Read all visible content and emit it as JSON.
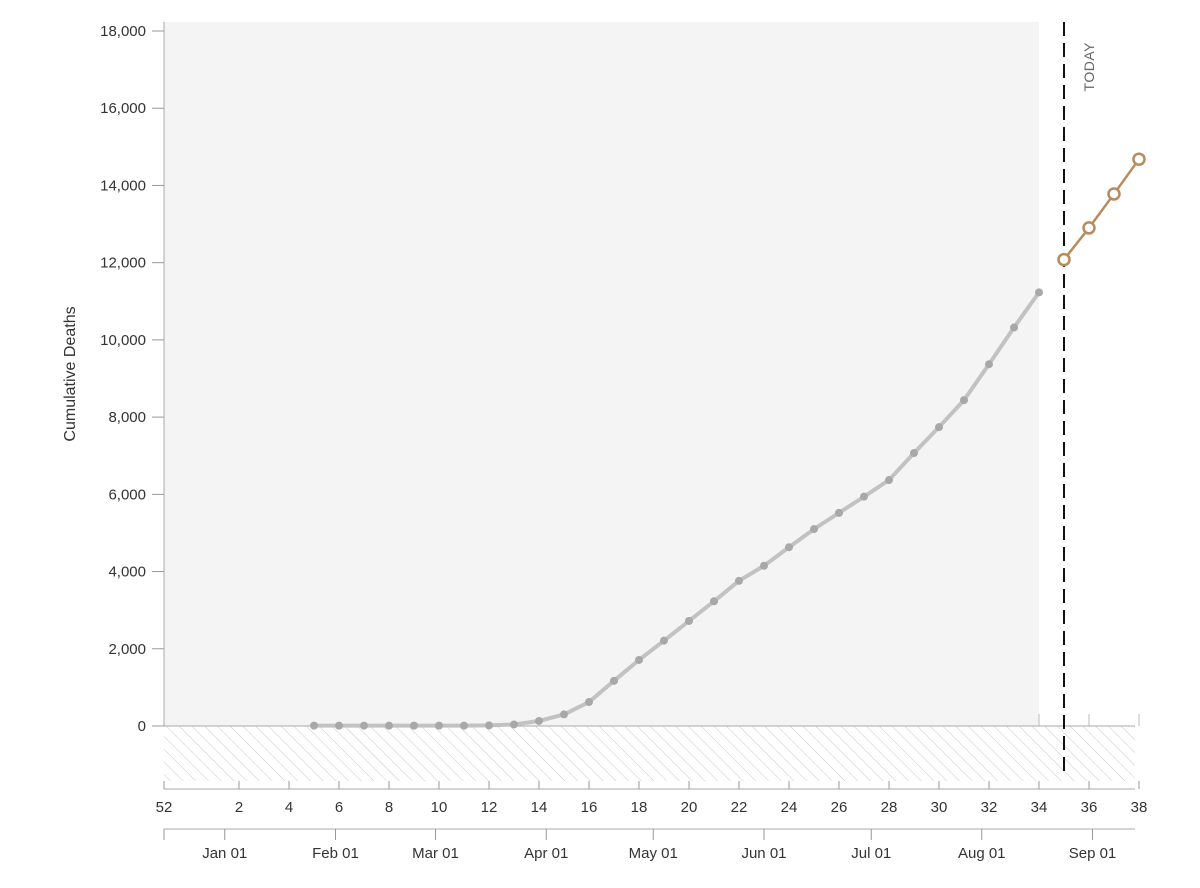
{
  "chart_data": {
    "type": "line",
    "title": "",
    "ylabel": "Cumulative Deaths",
    "xlabel": "",
    "ylim": [
      0,
      18000
    ],
    "yticks": [
      0,
      2000,
      4000,
      6000,
      8000,
      10000,
      12000,
      14000,
      16000,
      18000
    ],
    "ytick_labels": [
      "0",
      "2,000",
      "4,000",
      "6,000",
      "8,000",
      "10,000",
      "12,000",
      "14,000",
      "16,000",
      "18,000"
    ],
    "week_axis": {
      "range": [
        52,
        38
      ],
      "ticks": [
        52,
        2,
        4,
        6,
        8,
        10,
        12,
        14,
        16,
        18,
        20,
        22,
        24,
        26,
        28,
        30,
        32,
        34,
        36,
        38
      ],
      "labels": [
        "52",
        "2",
        "4",
        "6",
        "8",
        "10",
        "12",
        "14",
        "16",
        "18",
        "20",
        "22",
        "24",
        "26",
        "28",
        "30",
        "32",
        "34",
        "36",
        "38"
      ]
    },
    "month_axis": {
      "labels": [
        "Jan 01",
        "Feb 01",
        "Mar 01",
        "Apr 01",
        "May 01",
        "Jun 01",
        "Jul 01",
        "Aug 01",
        "Sep 01"
      ],
      "weeks": [
        1.43,
        5.86,
        9.86,
        14.29,
        18.57,
        23.0,
        27.29,
        31.71,
        36.14
      ]
    },
    "today_week": 35,
    "today_label": "TODAY",
    "series": [
      {
        "role": "observed",
        "color": "#c2c2c2",
        "marker_color": "#a8a8a8",
        "x": [
          5,
          6,
          7,
          8,
          9,
          10,
          11,
          12,
          13,
          14,
          15,
          16,
          17,
          18,
          19,
          20,
          21,
          22,
          23,
          24,
          25,
          26,
          27,
          28,
          29,
          30,
          31,
          32,
          33,
          34
        ],
        "y": [
          10,
          10,
          10,
          10,
          10,
          10,
          10,
          15,
          40,
          130,
          300,
          620,
          1170,
          1710,
          2210,
          2720,
          3230,
          3760,
          4150,
          4630,
          5100,
          5520,
          5940,
          6370,
          7070,
          7740,
          8440,
          9370,
          10320,
          11230
        ]
      },
      {
        "role": "forecast",
        "color": "#b98b5c",
        "x": [
          35,
          36,
          37,
          38
        ],
        "y": [
          12080,
          12900,
          13780,
          14680
        ]
      }
    ],
    "background": {
      "observed_region_color": "#f4f4f4",
      "negative_region_hatched": true
    }
  }
}
